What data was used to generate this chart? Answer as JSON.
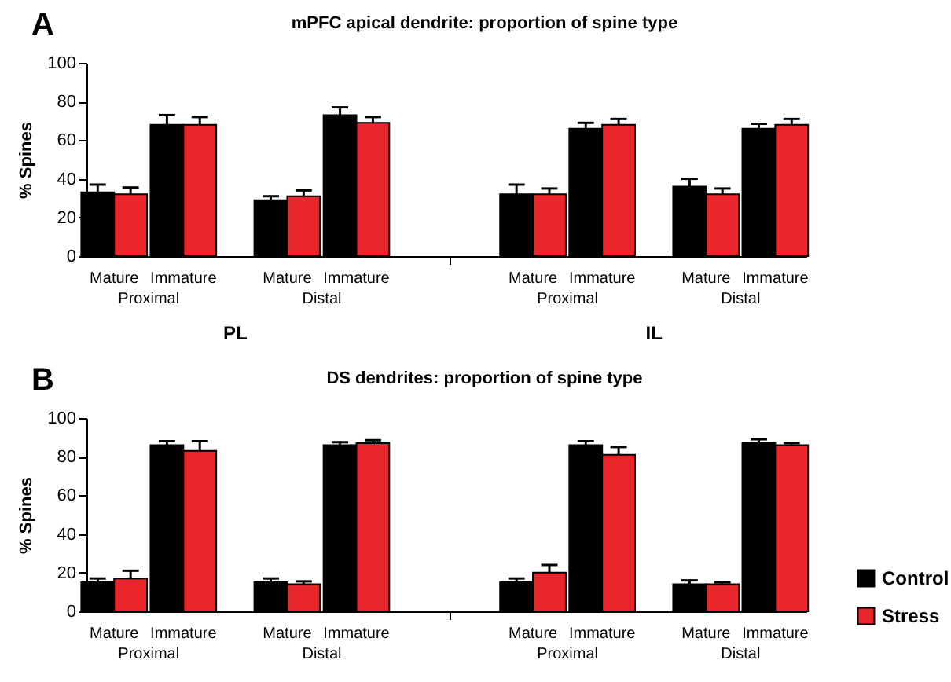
{
  "chart_data": [
    {
      "type": "bar",
      "title": "mPFC apical dendrite: proportion of spine type",
      "ylabel": "% Spines",
      "categories": [
        "Mature",
        "Immature",
        "Mature",
        "Immature",
        "Mature",
        "Immature",
        "Mature",
        "Immature"
      ],
      "series": [
        {
          "color": "#000000",
          "values": [
            33,
            68,
            29,
            73,
            32,
            66,
            36,
            66
          ],
          "errors": [
            4,
            5,
            2,
            4,
            5,
            3,
            4,
            2.5
          ]
        },
        {
          "color": "#e8262b",
          "values": [
            32,
            68,
            31,
            69,
            32,
            68,
            32,
            68
          ],
          "errors": [
            3.5,
            4,
            3,
            3,
            3,
            3,
            3,
            3
          ]
        }
      ],
      "ylim": [
        0,
        100
      ],
      "yticks": [
        0,
        20,
        40,
        60,
        80,
        100
      ],
      "grid": false,
      "legend": false,
      "annotations": [
        "A",
        "Proximal",
        "Distal",
        "Proximal",
        "Distal",
        "PL",
        "IL"
      ]
    },
    {
      "type": "bar",
      "title": "DS dendrites: proportion of spine type",
      "ylabel": "% Spines",
      "categories": [
        "Mature",
        "Immature",
        "Mature",
        "Immature",
        "Mature",
        "Immature",
        "Mature",
        "Immature"
      ],
      "series": [
        {
          "name": "Control",
          "color": "#000000",
          "values": [
            15,
            86,
            15,
            86,
            15,
            86,
            14,
            87
          ],
          "errors": [
            2,
            2,
            2,
            1.5,
            2,
            2,
            2,
            2
          ]
        },
        {
          "name": "Stress",
          "color": "#e8262b",
          "values": [
            17,
            83,
            14,
            87,
            20,
            81,
            14,
            86
          ],
          "errors": [
            4,
            5,
            1.5,
            1.5,
            4,
            4,
            1,
            1
          ]
        }
      ],
      "ylim": [
        0,
        100
      ],
      "yticks": [
        0,
        20,
        40,
        60,
        80,
        100
      ],
      "grid": false,
      "legend": "right",
      "annotations": [
        "B",
        "Proximal",
        "Distal",
        "Proximal",
        "Distal"
      ]
    }
  ]
}
